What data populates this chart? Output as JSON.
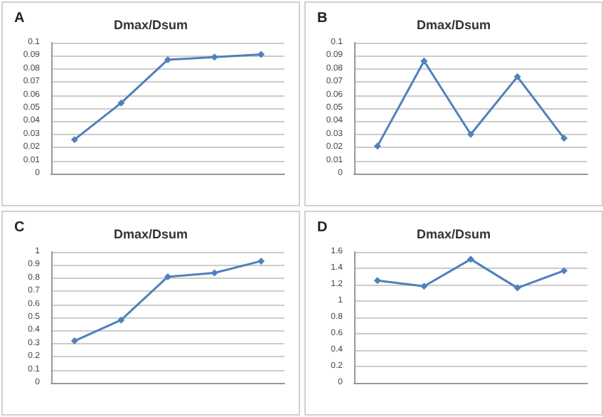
{
  "chart_data": [
    {
      "type": "line",
      "title": "Dmax/Dsum",
      "annotations": [
        "A"
      ],
      "categories": [
        null,
        null,
        null,
        null,
        null
      ],
      "series": [
        {
          "color": "#4f81bd",
          "values": [
            0.026,
            0.054,
            0.087,
            0.089,
            0.091
          ]
        }
      ],
      "ylim": [
        0,
        0.1
      ],
      "yticks": [
        0,
        0.01,
        0.02,
        0.03,
        0.04,
        0.05,
        0.06,
        0.07,
        0.08,
        0.09,
        0.1
      ],
      "grid": "y",
      "marker": "diamond",
      "line_style": "solid"
    },
    {
      "type": "line",
      "title": "Dmax/Dsum",
      "annotations": [
        "B"
      ],
      "categories": [
        null,
        null,
        null,
        null,
        null
      ],
      "series": [
        {
          "color": "#4f81bd",
          "values": [
            0.021,
            0.086,
            0.03,
            0.074,
            0.027
          ]
        }
      ],
      "ylim": [
        0,
        0.1
      ],
      "yticks": [
        0,
        0.01,
        0.02,
        0.03,
        0.04,
        0.05,
        0.06,
        0.07,
        0.08,
        0.09,
        0.1
      ],
      "grid": "y",
      "marker": "diamond",
      "line_style": "solid"
    },
    {
      "type": "line",
      "title": "Dmax/Dsum",
      "annotations": [
        "C"
      ],
      "categories": [
        null,
        null,
        null,
        null,
        null
      ],
      "series": [
        {
          "color": "#4f81bd",
          "values": [
            0.32,
            0.48,
            0.81,
            0.84,
            0.93
          ]
        }
      ],
      "ylim": [
        0,
        1
      ],
      "yticks": [
        0,
        0.1,
        0.2,
        0.3,
        0.4,
        0.5,
        0.6,
        0.7,
        0.8,
        0.9,
        1
      ],
      "grid": "y",
      "marker": "diamond",
      "line_style": "solid"
    },
    {
      "type": "line",
      "title": "Dmax/Dsum",
      "annotations": [
        "D"
      ],
      "categories": [
        null,
        null,
        null,
        null,
        null
      ],
      "series": [
        {
          "color": "#4f81bd",
          "values": [
            1.25,
            1.18,
            1.51,
            1.16,
            1.37
          ]
        }
      ],
      "ylim": [
        0,
        1.6
      ],
      "yticks": [
        0,
        0.2,
        0.4,
        0.6,
        0.8,
        1,
        1.2,
        1.4,
        1.6
      ],
      "grid": "y",
      "marker": "diamond",
      "line_style": "solid"
    }
  ]
}
